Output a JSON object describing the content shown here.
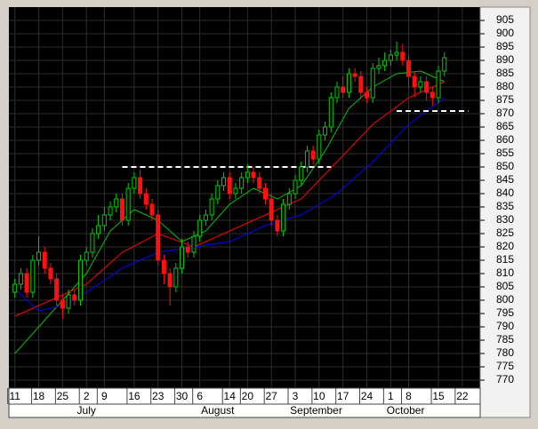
{
  "chart_data": {
    "type": "candlestick",
    "xlim": [
      -1,
      78
    ],
    "ylim": [
      767,
      910
    ],
    "yticks": [
      770,
      775,
      780,
      785,
      790,
      795,
      800,
      805,
      810,
      815,
      820,
      825,
      830,
      835,
      840,
      845,
      850,
      855,
      860,
      865,
      870,
      875,
      880,
      885,
      890,
      895,
      900,
      905
    ],
    "xticks": [
      {
        "value": 0,
        "label": "11"
      },
      {
        "value": 4,
        "label": "18"
      },
      {
        "value": 8,
        "label": "25"
      },
      {
        "value": 12,
        "label": "2"
      },
      {
        "value": 15,
        "label": "9"
      },
      {
        "value": 20,
        "label": "16"
      },
      {
        "value": 24,
        "label": "23"
      },
      {
        "value": 28,
        "label": "30"
      },
      {
        "value": 31,
        "label": "6"
      },
      {
        "value": 36,
        "label": "14"
      },
      {
        "value": 39,
        "label": "20"
      },
      {
        "value": 43,
        "label": "27"
      },
      {
        "value": 47,
        "label": "3"
      },
      {
        "value": 51,
        "label": "10"
      },
      {
        "value": 55,
        "label": "17"
      },
      {
        "value": 59,
        "label": "24"
      },
      {
        "value": 63,
        "label": "1"
      },
      {
        "value": 66,
        "label": "8"
      },
      {
        "value": 71,
        "label": "15"
      },
      {
        "value": 75,
        "label": "22"
      }
    ],
    "month_labels": [
      {
        "value": 12,
        "label": "July"
      },
      {
        "value": 34,
        "label": "August"
      },
      {
        "value": 50.5,
        "label": "September"
      },
      {
        "value": 65.5,
        "label": "October"
      }
    ],
    "grid": true,
    "up_color": "#00d000",
    "down_color": "#ff1010",
    "candles": [
      [
        803,
        808,
        801,
        806
      ],
      [
        806,
        812,
        804,
        810
      ],
      [
        810,
        812,
        801,
        803
      ],
      [
        803,
        817,
        801,
        815
      ],
      [
        815,
        824,
        813,
        818
      ],
      [
        818,
        820,
        810,
        812
      ],
      [
        812,
        814,
        806,
        808
      ],
      [
        808,
        810,
        798,
        800
      ],
      [
        800,
        802,
        793,
        797
      ],
      [
        797,
        804,
        795,
        802
      ],
      [
        802,
        804,
        798,
        800
      ],
      [
        800,
        817,
        798,
        815
      ],
      [
        815,
        820,
        813,
        818
      ],
      [
        818,
        827,
        816,
        825
      ],
      [
        825,
        832,
        823,
        828
      ],
      [
        828,
        835,
        826,
        832
      ],
      [
        832,
        837,
        830,
        835
      ],
      [
        835,
        840,
        833,
        838
      ],
      [
        838,
        840,
        828,
        830
      ],
      [
        830,
        844,
        828,
        842
      ],
      [
        842,
        848,
        840,
        846
      ],
      [
        846,
        849,
        838,
        840
      ],
      [
        840,
        842,
        834,
        836
      ],
      [
        836,
        838,
        830,
        832
      ],
      [
        832,
        834,
        813,
        815
      ],
      [
        815,
        817,
        806,
        810
      ],
      [
        810,
        812,
        798,
        805
      ],
      [
        805,
        814,
        803,
        812
      ],
      [
        812,
        823,
        810,
        820
      ],
      [
        820,
        822,
        816,
        818
      ],
      [
        818,
        826,
        816,
        824
      ],
      [
        824,
        832,
        822,
        830
      ],
      [
        830,
        834,
        828,
        832
      ],
      [
        832,
        840,
        830,
        838
      ],
      [
        838,
        845,
        836,
        843
      ],
      [
        843,
        848,
        841,
        846
      ],
      [
        846,
        848,
        838,
        840
      ],
      [
        840,
        844,
        838,
        842
      ],
      [
        842,
        848,
        840,
        846
      ],
      [
        846,
        851,
        844,
        848
      ],
      [
        848,
        850,
        844,
        846
      ],
      [
        846,
        848,
        840,
        842
      ],
      [
        842,
        844,
        836,
        838
      ],
      [
        838,
        840,
        828,
        830
      ],
      [
        830,
        832,
        824,
        826
      ],
      [
        826,
        838,
        824,
        836
      ],
      [
        836,
        842,
        834,
        840
      ],
      [
        840,
        847,
        838,
        845
      ],
      [
        845,
        852,
        843,
        850
      ],
      [
        850,
        858,
        848,
        856
      ],
      [
        856,
        858,
        851,
        853
      ],
      [
        853,
        864,
        851,
        862
      ],
      [
        862,
        867,
        860,
        865
      ],
      [
        865,
        878,
        863,
        876
      ],
      [
        876,
        882,
        874,
        880
      ],
      [
        880,
        884,
        876,
        878
      ],
      [
        878,
        887,
        876,
        885
      ],
      [
        885,
        887,
        882,
        884
      ],
      [
        884,
        886,
        876,
        878
      ],
      [
        878,
        880,
        874,
        876
      ],
      [
        876,
        889,
        874,
        887
      ],
      [
        887,
        891,
        885,
        888
      ],
      [
        888,
        893,
        886,
        890
      ],
      [
        890,
        894,
        888,
        892
      ],
      [
        892,
        897,
        890,
        893
      ],
      [
        893,
        896,
        888,
        890
      ],
      [
        890,
        892,
        880,
        884
      ],
      [
        884,
        886,
        876,
        880
      ],
      [
        880,
        884,
        878,
        882
      ],
      [
        882,
        884,
        875,
        878
      ],
      [
        878,
        880,
        873,
        876
      ],
      [
        876,
        888,
        874,
        886
      ],
      [
        886,
        893,
        884,
        891
      ]
    ],
    "series": [
      {
        "color": "#00c000",
        "x": [
          0,
          4,
          8,
          12,
          16,
          20,
          24,
          28,
          32,
          36,
          40,
          44,
          48,
          52,
          56,
          60,
          64,
          68,
          72
        ],
        "values": [
          780,
          790,
          800,
          810,
          826,
          834,
          830,
          822,
          826,
          836,
          842,
          838,
          843,
          856,
          872,
          880,
          885,
          886,
          882
        ]
      },
      {
        "color": "#ff0000",
        "x": [
          0,
          6,
          12,
          18,
          24,
          30,
          36,
          42,
          48,
          54,
          60,
          66,
          72
        ],
        "values": [
          794,
          800,
          806,
          818,
          825,
          820,
          826,
          832,
          838,
          852,
          866,
          876,
          882
        ]
      },
      {
        "color": "#0000ff",
        "x": [
          0,
          4,
          8,
          12,
          18,
          24,
          30,
          36,
          42,
          48,
          54,
          60,
          66,
          72
        ],
        "values": [
          804,
          796,
          798,
          803,
          812,
          818,
          820,
          822,
          828,
          832,
          840,
          852,
          866,
          876
        ]
      }
    ],
    "levels": [
      {
        "value": 850,
        "from": 18,
        "to": 53
      },
      {
        "value": 871,
        "from": 64,
        "to": 76
      }
    ],
    "level_color": "#ffffff"
  }
}
